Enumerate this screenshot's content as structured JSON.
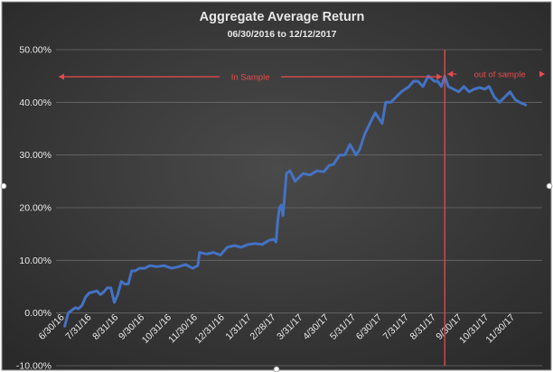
{
  "chart_data": {
    "type": "line",
    "title": "Aggregate Average Return",
    "subtitle": "06/30/2016 to 12/12/2017",
    "xlabel": "",
    "ylabel": "",
    "x_is_date": true,
    "ylim": [
      -0.1,
      0.5
    ],
    "yticks": [
      -0.1,
      0.0,
      0.1,
      0.2,
      0.3,
      0.4,
      0.5
    ],
    "ytick_labels": [
      "-10.00%",
      "0.00%",
      "10.00%",
      "20.00%",
      "30.00%",
      "40.00%",
      "50.00%"
    ],
    "xlim": [
      "2016-06-20",
      "2017-12-31"
    ],
    "xtick_labels": [
      "6/30/16",
      "7/31/16",
      "8/31/16",
      "9/30/16",
      "10/31/16",
      "11/30/16",
      "12/31/16",
      "1/31/17",
      "2/28/17",
      "3/31/17",
      "4/30/17",
      "5/31/17",
      "6/30/17",
      "7/31/17",
      "8/31/17",
      "9/30/17",
      "10/31/17",
      "11/30/17"
    ],
    "xtick_dates": [
      "2016-06-30",
      "2016-07-31",
      "2016-08-31",
      "2016-09-30",
      "2016-10-31",
      "2016-11-30",
      "2016-12-31",
      "2017-01-31",
      "2017-02-28",
      "2017-03-31",
      "2017-04-30",
      "2017-05-31",
      "2017-06-30",
      "2017-07-31",
      "2017-08-31",
      "2017-09-30",
      "2017-10-31",
      "2017-11-30"
    ],
    "grid": true,
    "legend": "none",
    "series": [
      {
        "color": "#4472c4",
        "x": [
          "2016-06-30",
          "2016-07-04",
          "2016-07-08",
          "2016-07-12",
          "2016-07-16",
          "2016-07-20",
          "2016-07-24",
          "2016-07-28",
          "2016-08-02",
          "2016-08-06",
          "2016-08-10",
          "2016-08-14",
          "2016-08-18",
          "2016-08-22",
          "2016-08-26",
          "2016-08-30",
          "2016-09-03",
          "2016-09-07",
          "2016-09-11",
          "2016-09-15",
          "2016-09-19",
          "2016-09-24",
          "2016-09-30",
          "2016-10-06",
          "2016-10-14",
          "2016-10-22",
          "2016-10-31",
          "2016-11-08",
          "2016-11-16",
          "2016-11-24",
          "2016-11-30",
          "2016-12-02",
          "2016-12-10",
          "2016-12-18",
          "2016-12-26",
          "2017-01-03",
          "2017-01-11",
          "2017-01-19",
          "2017-01-27",
          "2017-02-04",
          "2017-02-12",
          "2017-02-20",
          "2017-02-25",
          "2017-02-28",
          "2017-03-02",
          "2017-03-04",
          "2017-03-06",
          "2017-03-08",
          "2017-03-12",
          "2017-03-16",
          "2017-03-22",
          "2017-03-31",
          "2017-04-08",
          "2017-04-16",
          "2017-04-24",
          "2017-04-30",
          "2017-05-05",
          "2017-05-12",
          "2017-05-18",
          "2017-05-24",
          "2017-05-31",
          "2017-06-04",
          "2017-06-10",
          "2017-06-16",
          "2017-06-22",
          "2017-06-30",
          "2017-07-04",
          "2017-07-10",
          "2017-07-16",
          "2017-07-22",
          "2017-07-31",
          "2017-08-05",
          "2017-08-10",
          "2017-08-16",
          "2017-08-22",
          "2017-08-29",
          "2017-09-02",
          "2017-09-06",
          "2017-09-10",
          "2017-09-14",
          "2017-09-20",
          "2017-09-26",
          "2017-10-02",
          "2017-10-08",
          "2017-10-14",
          "2017-10-20",
          "2017-10-26",
          "2017-10-31",
          "2017-11-06",
          "2017-11-12",
          "2017-11-18",
          "2017-11-24",
          "2017-11-30",
          "2017-12-05",
          "2017-12-12"
        ],
        "values": [
          -0.025,
          0.0,
          0.005,
          0.01,
          0.008,
          0.015,
          0.03,
          0.038,
          0.04,
          0.042,
          0.035,
          0.04,
          0.048,
          0.048,
          0.02,
          0.035,
          0.06,
          0.055,
          0.055,
          0.08,
          0.08,
          0.085,
          0.085,
          0.09,
          0.088,
          0.09,
          0.085,
          0.088,
          0.092,
          0.085,
          0.09,
          0.115,
          0.112,
          0.115,
          0.11,
          0.125,
          0.128,
          0.125,
          0.13,
          0.132,
          0.13,
          0.138,
          0.14,
          0.135,
          0.175,
          0.2,
          0.205,
          0.185,
          0.265,
          0.27,
          0.25,
          0.265,
          0.262,
          0.27,
          0.268,
          0.28,
          0.282,
          0.3,
          0.3,
          0.32,
          0.3,
          0.31,
          0.34,
          0.36,
          0.38,
          0.36,
          0.4,
          0.4,
          0.41,
          0.42,
          0.43,
          0.44,
          0.44,
          0.43,
          0.45,
          0.44,
          0.44,
          0.43,
          0.45,
          0.43,
          0.425,
          0.42,
          0.43,
          0.42,
          0.425,
          0.428,
          0.425,
          0.43,
          0.41,
          0.4,
          0.41,
          0.42,
          0.405,
          0.4,
          0.395
        ]
      }
    ],
    "annotations": {
      "in_sample": "In Sample",
      "out_of_sample": "out of sample",
      "split_date": "2017-09-10",
      "color": "#e84b4b"
    }
  },
  "colors": {
    "background": "#3a3a3a",
    "grid": "#6a6a6a",
    "text": "#e8e8e8",
    "line": "#4472c4",
    "annotation": "#e84b4b"
  }
}
